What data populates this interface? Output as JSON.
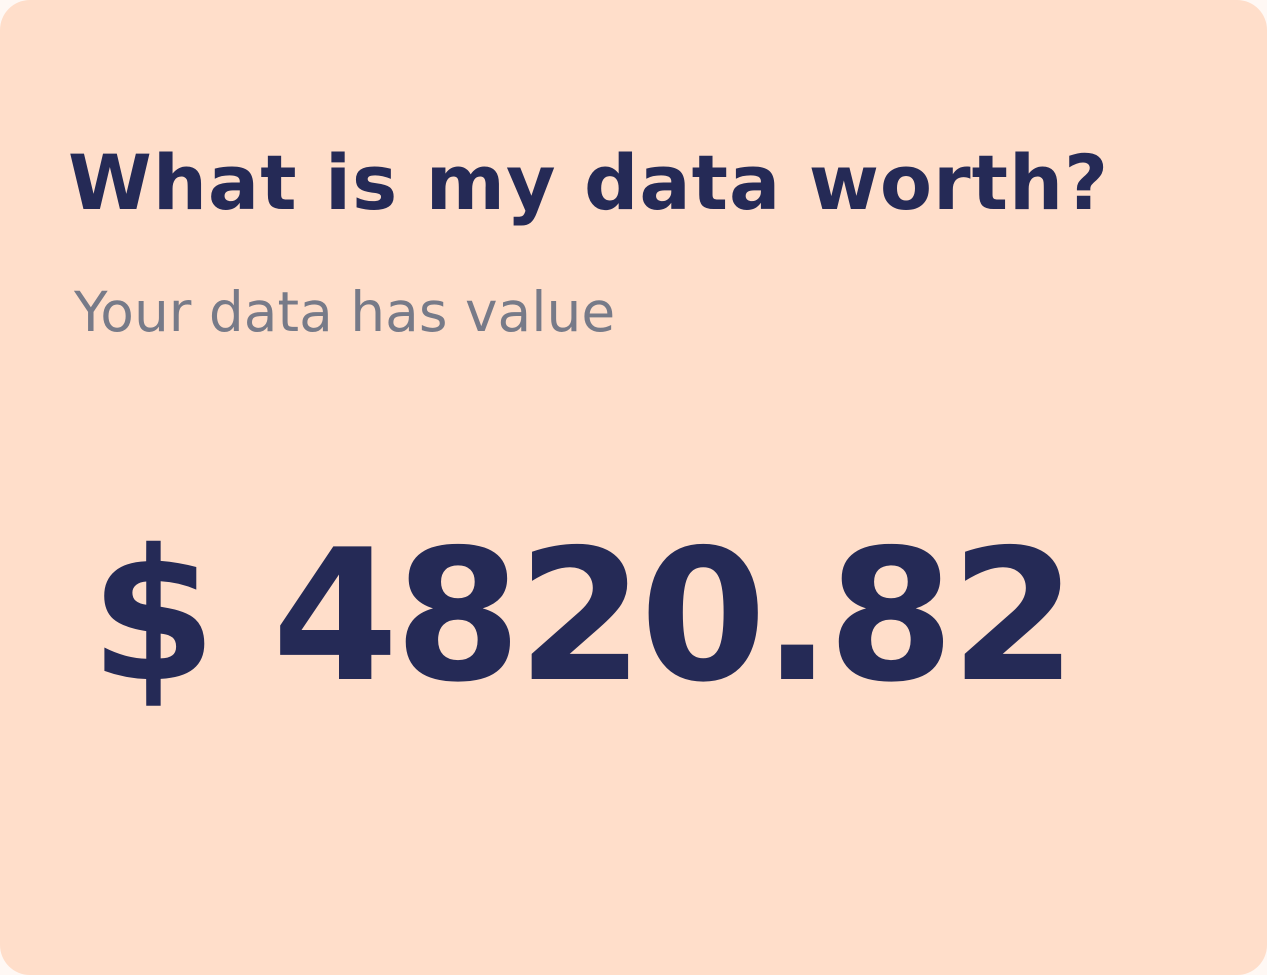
{
  "card": {
    "title": "What is my data worth?",
    "subtitle": "Your data has value",
    "amount": "$ 4820.82",
    "colors": {
      "background": "#ffdeca",
      "text": "#252a56",
      "subtitle": "#777a88"
    }
  }
}
